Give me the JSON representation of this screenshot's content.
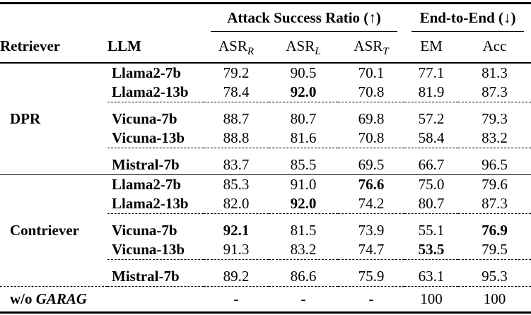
{
  "table": {
    "group_headers": {
      "asr": "Attack Success Ratio (↑)",
      "e2e": "End-to-End (↓)"
    },
    "columns": {
      "retriever": "Retriever",
      "llm": "LLM",
      "asr_r_base": "ASR",
      "asr_r_sub": "R",
      "asr_l_base": "ASR",
      "asr_l_sub": "L",
      "asr_t_base": "ASR",
      "asr_t_sub": "T",
      "em": "EM",
      "acc": "Acc"
    },
    "sections": [
      {
        "retriever": "DPR",
        "rows": [
          {
            "llm": "Llama2-7b",
            "asr_r": "79.2",
            "asr_l": "90.5",
            "asr_t": "70.1",
            "em": "77.1",
            "acc": "81.3"
          },
          {
            "llm": "Llama2-13b",
            "asr_r": "78.4",
            "asr_l": "92.0",
            "asr_t": "70.8",
            "em": "81.9",
            "acc": "87.3"
          },
          {
            "llm": "Vicuna-7b",
            "asr_r": "88.7",
            "asr_l": "80.7",
            "asr_t": "69.8",
            "em": "57.2",
            "acc": "79.3"
          },
          {
            "llm": "Vicuna-13b",
            "asr_r": "88.8",
            "asr_l": "81.6",
            "asr_t": "70.8",
            "em": "58.4",
            "acc": "83.2"
          },
          {
            "llm": "Mistral-7b",
            "asr_r": "83.7",
            "asr_l": "85.5",
            "asr_t": "69.5",
            "em": "66.7",
            "acc": "96.5"
          }
        ]
      },
      {
        "retriever": "Contriever",
        "rows": [
          {
            "llm": "Llama2-7b",
            "asr_r": "85.3",
            "asr_l": "91.0",
            "asr_t": "76.6",
            "em": "75.0",
            "acc": "79.6"
          },
          {
            "llm": "Llama2-13b",
            "asr_r": "82.0",
            "asr_l": "92.0",
            "asr_t": "74.2",
            "em": "80.7",
            "acc": "87.3"
          },
          {
            "llm": "Vicuna-7b",
            "asr_r": "92.1",
            "asr_l": "81.5",
            "asr_t": "73.9",
            "em": "55.1",
            "acc": "76.9"
          },
          {
            "llm": "Vicuna-13b",
            "asr_r": "91.3",
            "asr_l": "83.2",
            "asr_t": "74.7",
            "em": "53.5",
            "acc": "79.5"
          },
          {
            "llm": "Mistral-7b",
            "asr_r": "89.2",
            "asr_l": "86.6",
            "asr_t": "75.9",
            "em": "63.1",
            "acc": "95.3"
          }
        ]
      }
    ],
    "baseline": {
      "prefix": "w/o",
      "method": "GARAG",
      "asr_r": "-",
      "asr_l": "-",
      "asr_t": "-",
      "em": "100",
      "acc": "100"
    }
  }
}
